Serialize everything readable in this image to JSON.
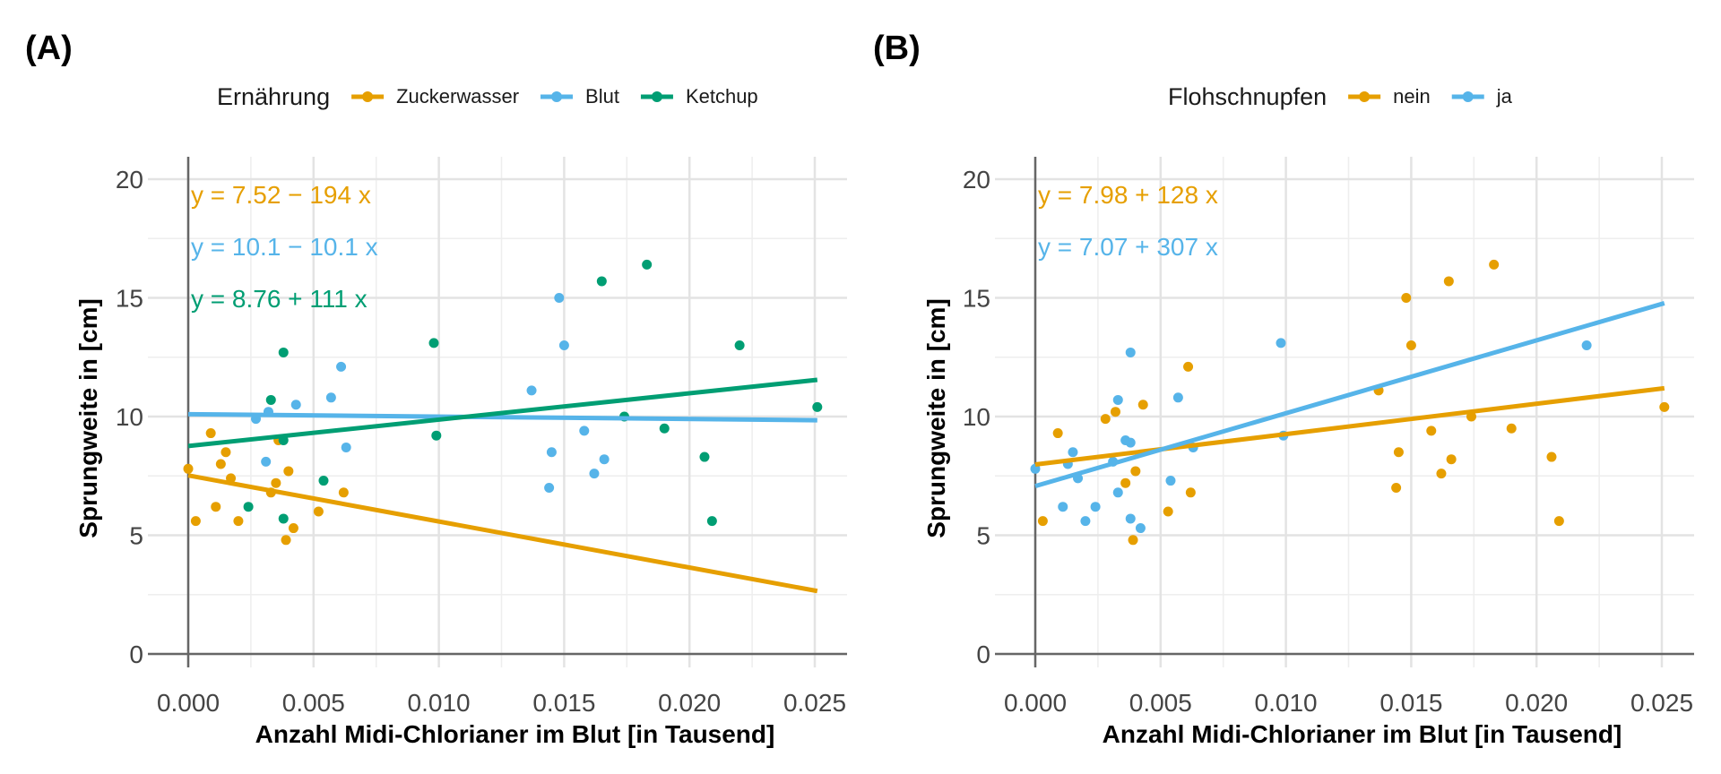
{
  "chart_data": [
    {
      "panel": "(A)",
      "type": "scatter",
      "legend_title": "Ernährung",
      "legend_position": "top",
      "xlabel": "Anzahl Midi-Chlorianer im Blut [in Tausend]",
      "ylabel": "Sprungweite in [cm]",
      "xlim": [
        0.0,
        0.025
      ],
      "ylim": [
        0,
        20
      ],
      "x_ticks": [
        "0.000",
        "0.005",
        "0.010",
        "0.015",
        "0.020",
        "0.025"
      ],
      "y_ticks": [
        "0",
        "5",
        "10",
        "15",
        "20"
      ],
      "grid": true,
      "series": [
        {
          "name": "Zuckerwasser",
          "color": "#E69F00",
          "equation": "y = 7.52 − 194 x",
          "line": {
            "intercept": 7.52,
            "slope": -194,
            "x_range": [
              0.0,
              0.0251
            ]
          },
          "points": [
            [
              0.0,
              7.8
            ],
            [
              0.0003,
              5.6
            ],
            [
              0.0009,
              9.3
            ],
            [
              0.0011,
              6.2
            ],
            [
              0.0013,
              8.0
            ],
            [
              0.0015,
              8.5
            ],
            [
              0.0017,
              7.4
            ],
            [
              0.002,
              5.6
            ],
            [
              0.0033,
              6.8
            ],
            [
              0.0035,
              7.2
            ],
            [
              0.0036,
              9.0
            ],
            [
              0.0039,
              4.8
            ],
            [
              0.004,
              7.7
            ],
            [
              0.0042,
              5.3
            ],
            [
              0.0052,
              6.0
            ],
            [
              0.0062,
              6.8
            ]
          ]
        },
        {
          "name": "Blut",
          "color": "#56B4E9",
          "equation": "y = 10.1 − 10.1 x",
          "line": {
            "intercept": 10.1,
            "slope": -10.1,
            "x_range": [
              0.0,
              0.0251
            ]
          },
          "points": [
            [
              0.0027,
              9.9
            ],
            [
              0.0031,
              8.1
            ],
            [
              0.0032,
              10.2
            ],
            [
              0.0043,
              10.5
            ],
            [
              0.0057,
              10.8
            ],
            [
              0.0061,
              12.1
            ],
            [
              0.0063,
              8.7
            ],
            [
              0.0137,
              11.1
            ],
            [
              0.0144,
              7.0
            ],
            [
              0.0145,
              8.5
            ],
            [
              0.0148,
              15.0
            ],
            [
              0.015,
              13.0
            ],
            [
              0.0158,
              9.4
            ],
            [
              0.0162,
              7.6
            ],
            [
              0.0166,
              8.2
            ]
          ]
        },
        {
          "name": "Ketchup",
          "color": "#009E73",
          "equation": "y = 8.76 + 111 x",
          "line": {
            "intercept": 8.76,
            "slope": 111,
            "x_range": [
              0.0,
              0.0251
            ]
          },
          "points": [
            [
              0.0024,
              6.2
            ],
            [
              0.0033,
              10.7
            ],
            [
              0.0038,
              12.7
            ],
            [
              0.0038,
              9.0
            ],
            [
              0.0038,
              5.7
            ],
            [
              0.0054,
              7.3
            ],
            [
              0.0098,
              13.1
            ],
            [
              0.0099,
              9.2
            ],
            [
              0.0165,
              15.7
            ],
            [
              0.0174,
              10.0
            ],
            [
              0.0183,
              16.4
            ],
            [
              0.019,
              9.5
            ],
            [
              0.0206,
              8.3
            ],
            [
              0.0209,
              5.6
            ],
            [
              0.022,
              13.0
            ],
            [
              0.0251,
              10.4
            ]
          ]
        }
      ]
    },
    {
      "panel": "(B)",
      "type": "scatter",
      "legend_title": "Flohschnupfen",
      "legend_position": "top",
      "xlabel": "Anzahl Midi-Chlorianer im Blut [in Tausend]",
      "ylabel": "Sprungweite in [cm]",
      "xlim": [
        0.0,
        0.025
      ],
      "ylim": [
        0,
        20
      ],
      "x_ticks": [
        "0.000",
        "0.005",
        "0.010",
        "0.015",
        "0.020",
        "0.025"
      ],
      "y_ticks": [
        "0",
        "5",
        "10",
        "15",
        "20"
      ],
      "grid": true,
      "series": [
        {
          "name": "nein",
          "color": "#E69F00",
          "equation": "y = 7.98 + 128 x",
          "line": {
            "intercept": 7.98,
            "slope": 128,
            "x_range": [
              0.0,
              0.0251
            ]
          },
          "points": [
            [
              0.0003,
              5.6
            ],
            [
              0.0009,
              9.3
            ],
            [
              0.0028,
              9.9
            ],
            [
              0.0032,
              10.2
            ],
            [
              0.0036,
              7.2
            ],
            [
              0.0039,
              4.8
            ],
            [
              0.004,
              7.7
            ],
            [
              0.0043,
              10.5
            ],
            [
              0.0053,
              6.0
            ],
            [
              0.0061,
              12.1
            ],
            [
              0.0062,
              6.8
            ],
            [
              0.0137,
              11.1
            ],
            [
              0.0144,
              7.0
            ],
            [
              0.0145,
              8.5
            ],
            [
              0.0148,
              15.0
            ],
            [
              0.015,
              13.0
            ],
            [
              0.0158,
              9.4
            ],
            [
              0.0162,
              7.6
            ],
            [
              0.0165,
              15.7
            ],
            [
              0.0166,
              8.2
            ],
            [
              0.0174,
              10.0
            ],
            [
              0.0183,
              16.4
            ],
            [
              0.019,
              9.5
            ],
            [
              0.0206,
              8.3
            ],
            [
              0.0209,
              5.6
            ],
            [
              0.0251,
              10.4
            ]
          ]
        },
        {
          "name": "ja",
          "color": "#56B4E9",
          "equation": "y = 7.07 + 307 x",
          "line": {
            "intercept": 7.07,
            "slope": 307,
            "x_range": [
              0.0,
              0.0251
            ]
          },
          "points": [
            [
              0.0,
              7.8
            ],
            [
              0.0011,
              6.2
            ],
            [
              0.0013,
              8.0
            ],
            [
              0.0015,
              8.5
            ],
            [
              0.0017,
              7.4
            ],
            [
              0.002,
              5.6
            ],
            [
              0.0024,
              6.2
            ],
            [
              0.0031,
              8.1
            ],
            [
              0.0033,
              10.7
            ],
            [
              0.0033,
              6.8
            ],
            [
              0.0036,
              9.0
            ],
            [
              0.0038,
              12.7
            ],
            [
              0.0038,
              8.9
            ],
            [
              0.0038,
              5.7
            ],
            [
              0.0042,
              5.3
            ],
            [
              0.0054,
              7.3
            ],
            [
              0.0057,
              10.8
            ],
            [
              0.0063,
              8.7
            ],
            [
              0.0098,
              13.1
            ],
            [
              0.0099,
              9.2
            ],
            [
              0.022,
              13.0
            ]
          ]
        }
      ]
    }
  ]
}
